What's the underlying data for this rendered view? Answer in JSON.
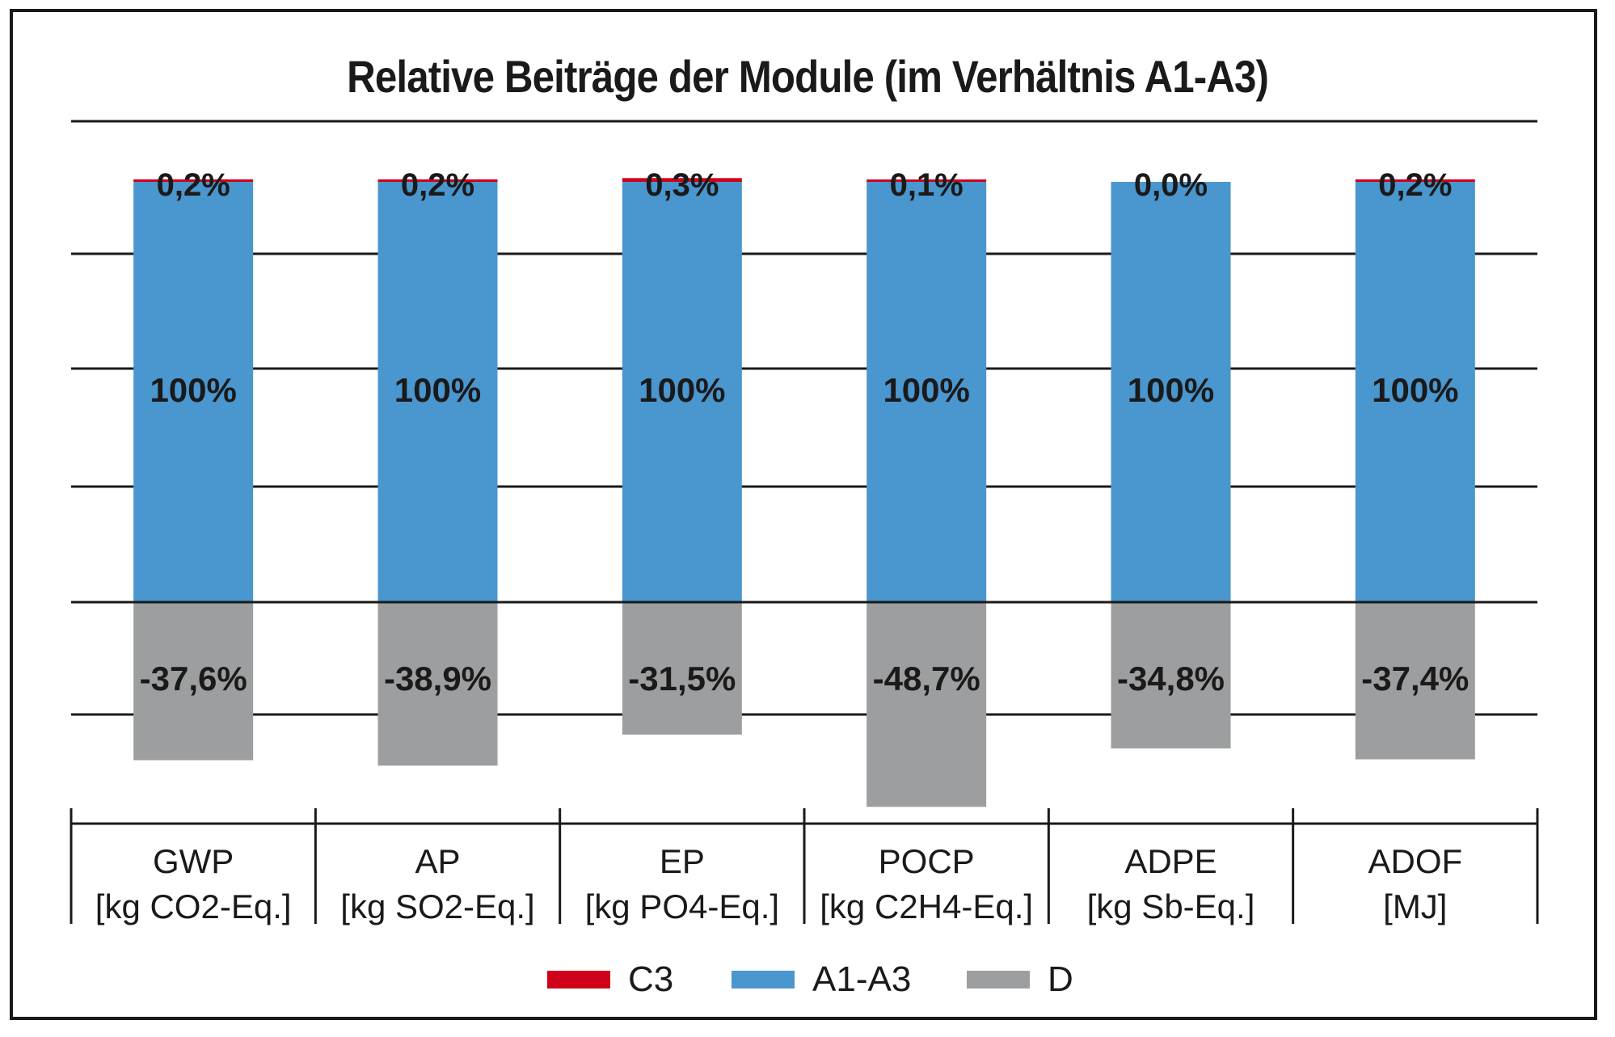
{
  "chart_data": {
    "type": "bar",
    "stacked": true,
    "title": "Relative Beiträge der Module (im Verhältnis A1-A3)",
    "categories": [
      {
        "name": "GWP",
        "unit": "[kg CO2-Eq.]"
      },
      {
        "name": "AP",
        "unit": "[kg SO2-Eq.]"
      },
      {
        "name": "EP",
        "unit": "[kg PO4-Eq.]"
      },
      {
        "name": "POCP",
        "unit": "[kg C2H4-Eq.]"
      },
      {
        "name": "ADPE",
        "unit": "[kg Sb-Eq.]"
      },
      {
        "name": "ADOF",
        "unit": "[MJ]"
      }
    ],
    "series": [
      {
        "name": "C3",
        "color": "#d0021b",
        "values": [
          0.2,
          0.2,
          0.3,
          0.1,
          0.0,
          0.2
        ],
        "labels": [
          "0,2%",
          "0,2%",
          "0,3%",
          "0,1%",
          "0,0%",
          "0,2%"
        ]
      },
      {
        "name": "A1-A3",
        "color": "#4a96ce",
        "values": [
          100,
          100,
          100,
          100,
          100,
          100
        ],
        "labels": [
          "100%",
          "100%",
          "100%",
          "100%",
          "100%",
          "100%"
        ]
      },
      {
        "name": "D",
        "color": "#9d9e9f",
        "values": [
          -37.6,
          -38.9,
          -31.5,
          -48.7,
          -34.8,
          -37.4
        ],
        "labels": [
          "-37,6%",
          "-38,9%",
          "-31,5%",
          "-48,7%",
          "-34,8%",
          "-37,4%"
        ]
      }
    ],
    "grid": true,
    "legend_position": "bottom"
  }
}
